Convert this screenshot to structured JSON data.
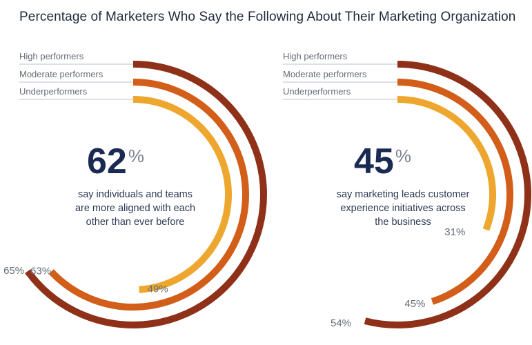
{
  "title": "Percentage of Marketers Who Say the Following About Their Marketing Organization",
  "colors": {
    "high": "#8f3118",
    "moderate": "#d25e1a",
    "under": "#eea72e",
    "leader_line": "#c9ced6",
    "label_text": "#666c77",
    "title_text": "#1e2a3b",
    "big_number": "#1b2a52"
  },
  "chart_data": [
    {
      "type": "radial-bar",
      "headline_value": "62",
      "headline_unit": "%",
      "caption_lines": [
        "say individuals and teams",
        "are more aligned with each",
        "other than ever before"
      ],
      "categories": [
        "High performers",
        "Moderate performers",
        "Underperformers"
      ],
      "values": [
        65,
        63,
        49
      ],
      "value_labels": [
        "65%",
        "63%",
        "49%"
      ],
      "unit": "%"
    },
    {
      "type": "radial-bar",
      "headline_value": "45",
      "headline_unit": "%",
      "caption_lines": [
        "say marketing leads customer",
        "experience initiatives across",
        "the business"
      ],
      "categories": [
        "High performers",
        "Moderate performers",
        "Underperformers"
      ],
      "values": [
        54,
        45,
        31
      ],
      "value_labels": [
        "54%",
        "45%",
        "31%"
      ],
      "unit": "%"
    }
  ]
}
